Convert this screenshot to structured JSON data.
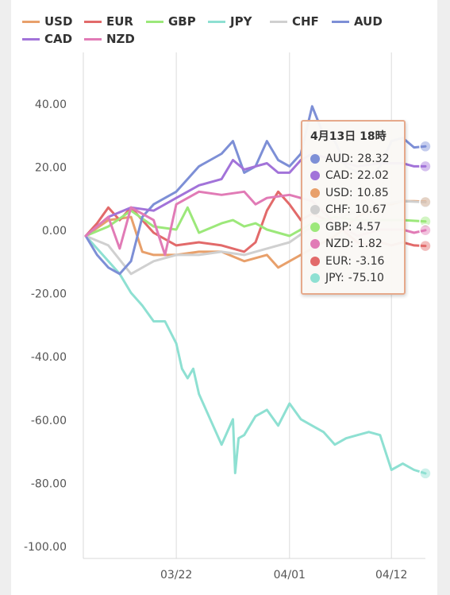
{
  "chart_data": {
    "type": "line",
    "title": "",
    "xlabel": "",
    "ylabel": "",
    "ylim": [
      -100,
      50
    ],
    "yticks": [
      40,
      20,
      0,
      -20,
      -40,
      -60,
      -80,
      -100
    ],
    "ytick_labels": [
      "40.00",
      "20.00",
      "0.00",
      "-20.00",
      "-40.00",
      "-60.00",
      "-80.00",
      "-100.00"
    ],
    "xlim": [
      0,
      30
    ],
    "xticks": [
      8,
      18,
      27
    ],
    "xtick_labels": [
      "03/22",
      "04/01",
      "04/12"
    ],
    "grid": {
      "vertical": true,
      "horizontal": false
    },
    "legend": "top",
    "tooltip": {
      "title": "4月13日 18時",
      "rows": [
        {
          "name": "AUD",
          "text": "AUD:",
          "value": "28.32"
        },
        {
          "name": "CAD",
          "text": "CAD:",
          "value": "22.02"
        },
        {
          "name": "USD",
          "text": "USD:",
          "value": "10.85"
        },
        {
          "name": "CHF",
          "text": "CHF:",
          "value": "10.67"
        },
        {
          "name": "GBP",
          "text": "GBP:",
          "value": "4.57"
        },
        {
          "name": "NZD",
          "text": "NZD:",
          "value": "1.82"
        },
        {
          "name": "EUR",
          "text": "EUR:",
          "value": "-3.16"
        },
        {
          "name": "JPY",
          "text": "JPY:",
          "value": "-75.10"
        }
      ]
    },
    "series": [
      {
        "name": "USD",
        "color": "#e8a06b",
        "x": [
          0,
          2,
          4,
          5,
          6,
          8,
          10,
          12,
          14,
          16,
          17,
          18,
          20,
          22,
          24,
          25,
          26,
          27,
          28,
          29,
          30
        ],
        "y": [
          0,
          5,
          6,
          -5,
          -6,
          -6,
          -5,
          -5,
          -8,
          -6,
          -10,
          -8,
          -4,
          0,
          6,
          8,
          10,
          10,
          11,
          11,
          10.85
        ]
      },
      {
        "name": "EUR",
        "color": "#e26a6a",
        "x": [
          0,
          1,
          2,
          3,
          4,
          6,
          8,
          10,
          12,
          14,
          15,
          16,
          17,
          18,
          19,
          20,
          22,
          24,
          25,
          26,
          27,
          28,
          29,
          30
        ],
        "y": [
          0,
          4,
          9,
          5,
          9,
          1,
          -3,
          -2,
          -3,
          -5,
          -2,
          8,
          14,
          10,
          5,
          7,
          4,
          -2,
          -3,
          -2,
          -3,
          -2,
          -3,
          -3.16
        ]
      },
      {
        "name": "GBP",
        "color": "#9ce87a",
        "x": [
          0,
          2,
          4,
          6,
          8,
          9,
          10,
          12,
          13,
          14,
          15,
          16,
          17,
          18,
          20,
          22,
          24,
          26,
          28,
          30
        ],
        "y": [
          0,
          3,
          8,
          3,
          2,
          9,
          1,
          4,
          5,
          3,
          4,
          2,
          1,
          0,
          4,
          6,
          5,
          5,
          5,
          4.57
        ]
      },
      {
        "name": "JPY",
        "color": "#8ee0d2",
        "x": [
          0,
          1,
          2,
          3,
          4,
          5,
          6,
          7,
          8,
          8.5,
          9,
          9.5,
          10,
          11,
          12,
          13,
          13.2,
          13.5,
          14,
          15,
          16,
          17,
          18,
          19,
          20,
          21,
          22,
          23,
          24,
          25,
          26,
          27,
          28,
          29,
          30
        ],
        "y": [
          0,
          -4,
          -8,
          -12,
          -18,
          -22,
          -27,
          -27,
          -34,
          -42,
          -45,
          -42,
          -50,
          -58,
          -66,
          -58,
          -75,
          -64,
          -63,
          -57,
          -55,
          -60,
          -53,
          -58,
          -60,
          -62,
          -66,
          -64,
          -63,
          -62,
          -63,
          -74,
          -72,
          -74,
          -75.1
        ]
      },
      {
        "name": "CHF",
        "color": "#d0d0d0",
        "x": [
          0,
          2,
          4,
          6,
          8,
          10,
          12,
          14,
          16,
          18,
          20,
          22,
          24,
          26,
          28,
          30
        ],
        "y": [
          0,
          -3,
          -12,
          -8,
          -6,
          -6,
          -5,
          -6,
          -4,
          -2,
          3,
          5,
          8,
          10,
          11,
          10.67
        ]
      },
      {
        "name": "AUD",
        "color": "#7d8fd6",
        "x": [
          0,
          1,
          2,
          3,
          4,
          5,
          6,
          7,
          8,
          9,
          10,
          11,
          12,
          13,
          14,
          15,
          16,
          17,
          18,
          19,
          20,
          21,
          22,
          23,
          24,
          25,
          26,
          27,
          28,
          29,
          30
        ],
        "y": [
          0,
          -6,
          -10,
          -12,
          -8,
          6,
          10,
          12,
          14,
          18,
          22,
          24,
          26,
          30,
          20,
          22,
          30,
          24,
          22,
          26,
          41,
          32,
          30,
          22,
          20,
          18,
          22,
          30,
          31,
          28,
          28.32
        ]
      },
      {
        "name": "CAD",
        "color": "#a273d9",
        "x": [
          0,
          2,
          4,
          6,
          8,
          10,
          12,
          13,
          14,
          15,
          16,
          17,
          18,
          19,
          20,
          22,
          24,
          26,
          28,
          29,
          30
        ],
        "y": [
          0,
          6,
          9,
          8,
          12,
          16,
          18,
          24,
          21,
          22,
          23,
          20,
          20,
          24,
          26,
          24,
          22,
          23,
          23,
          22,
          22.02
        ]
      },
      {
        "name": "NZD",
        "color": "#e17bb6",
        "x": [
          0,
          2,
          3,
          4,
          6,
          7,
          8,
          10,
          12,
          14,
          15,
          16,
          18,
          20,
          22,
          24,
          26,
          28,
          29,
          30
        ],
        "y": [
          0,
          6,
          -4,
          9,
          5,
          -6,
          10,
          14,
          13,
          14,
          10,
          12,
          13,
          11,
          4,
          0,
          2,
          2,
          1,
          1.82
        ]
      }
    ]
  }
}
